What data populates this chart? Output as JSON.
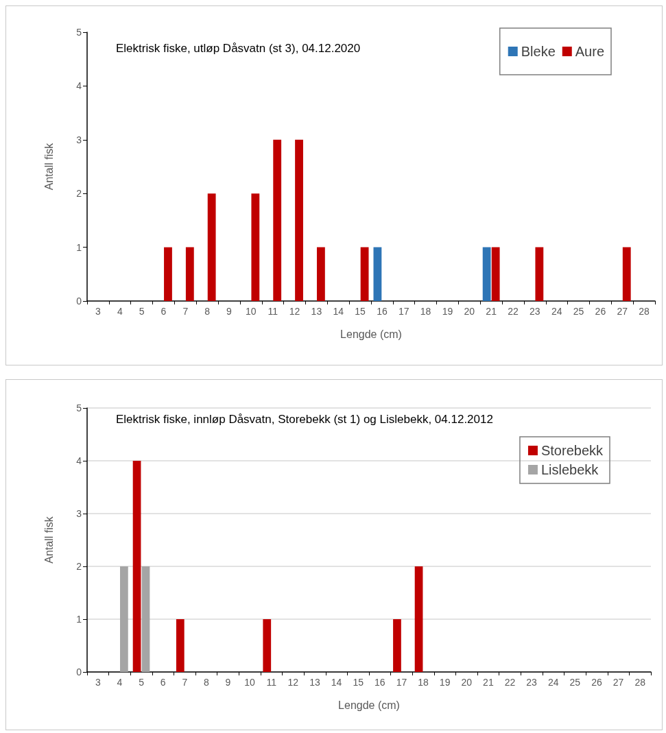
{
  "chart_data": [
    {
      "type": "bar",
      "title": "Elektrisk fiske, utløp Dåsvatn (st 3), 04.12.2020",
      "xlabel": "Lengde (cm)",
      "ylabel": "Antall fisk",
      "categories": [
        "3",
        "4",
        "5",
        "6",
        "7",
        "8",
        "9",
        "10",
        "11",
        "12",
        "13",
        "14",
        "15",
        "16",
        "17",
        "18",
        "19",
        "20",
        "21",
        "22",
        "23",
        "24",
        "25",
        "26",
        "27",
        "28"
      ],
      "series": [
        {
          "name": "Bleke",
          "color": "#2e75b6",
          "values": [
            0,
            0,
            0,
            0,
            0,
            0,
            0,
            0,
            0,
            0,
            0,
            0,
            0,
            1,
            0,
            0,
            0,
            0,
            1,
            0,
            0,
            0,
            0,
            0,
            0,
            0
          ]
        },
        {
          "name": "Aure",
          "color": "#c00000",
          "values": [
            0,
            0,
            0,
            1,
            1,
            2,
            0,
            2,
            3,
            3,
            1,
            0,
            1,
            0,
            0,
            0,
            0,
            0,
            1,
            0,
            1,
            0,
            0,
            0,
            1,
            0
          ]
        }
      ],
      "ylim": [
        0,
        5
      ],
      "yticks": [
        0,
        1,
        2,
        3,
        4,
        5
      ],
      "grid": false,
      "legend": "top right"
    },
    {
      "type": "bar",
      "title": "Elektrisk fiske, innløp Dåsvatn, Storebekk (st 1) og Lislebekk, 04.12.2012",
      "xlabel": "Lengde (cm)",
      "ylabel": "Antall fisk",
      "categories": [
        "3",
        "4",
        "5",
        "6",
        "7",
        "8",
        "9",
        "10",
        "11",
        "12",
        "13",
        "14",
        "15",
        "16",
        "17",
        "18",
        "19",
        "20",
        "21",
        "22",
        "23",
        "24",
        "25",
        "26",
        "27",
        "28"
      ],
      "series": [
        {
          "name": "Storebekk",
          "color": "#c00000",
          "values": [
            0,
            0,
            4,
            0,
            1,
            0,
            0,
            0,
            1,
            0,
            0,
            0,
            0,
            0,
            1,
            2,
            0,
            0,
            0,
            0,
            0,
            0,
            0,
            0,
            0,
            0
          ]
        },
        {
          "name": "Lislebekk",
          "color": "#a5a5a5",
          "values": [
            0,
            2,
            2,
            0,
            0,
            0,
            0,
            0,
            0,
            0,
            0,
            0,
            0,
            0,
            0,
            0,
            0,
            0,
            0,
            0,
            0,
            0,
            0,
            0,
            0,
            0
          ]
        }
      ],
      "ylim": [
        0,
        5
      ],
      "yticks": [
        0,
        1,
        2,
        3,
        4,
        5
      ],
      "grid": "y",
      "legend": "top right"
    }
  ]
}
